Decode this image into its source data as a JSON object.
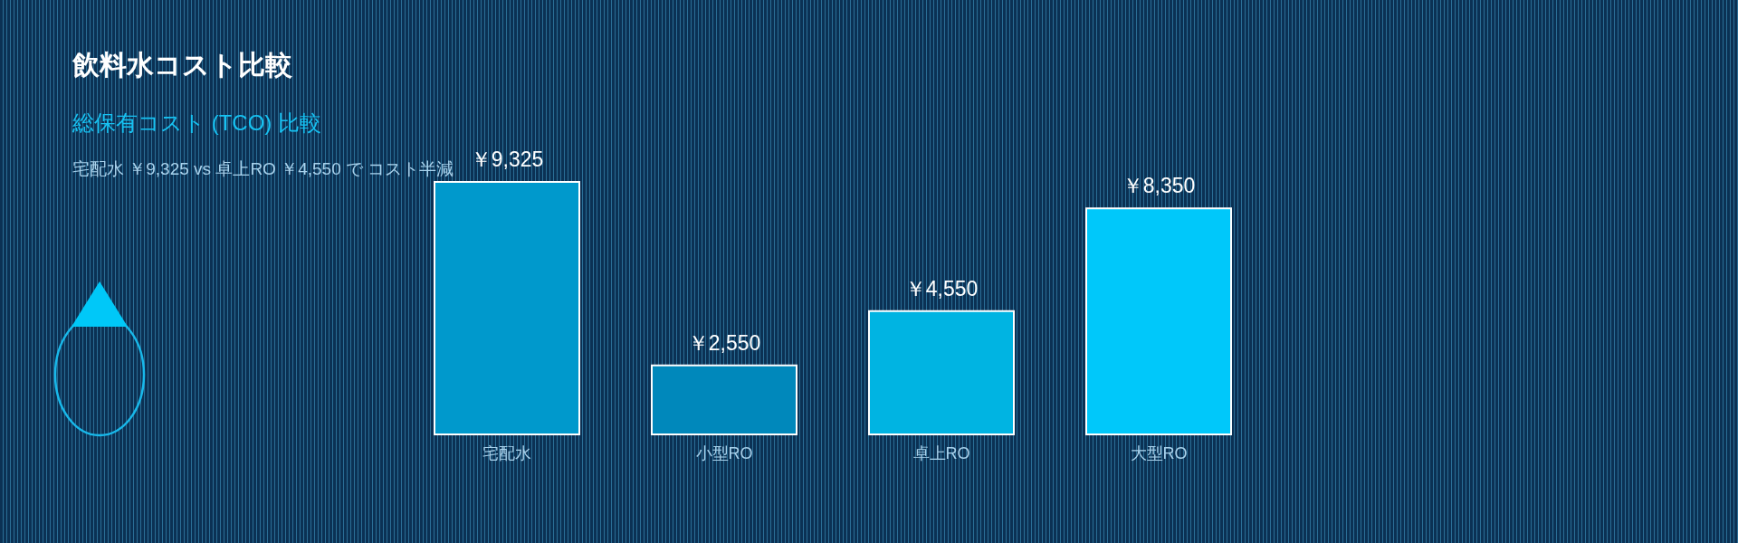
{
  "chart_data": {
    "type": "bar",
    "title": "飲料水コスト比較",
    "subtitle": "総保有コスト (TCO) 比較",
    "annotations": [
      "宅配水 ￥9,325 vs 卓上RO ￥4,550 で コスト半減"
    ],
    "categories": [
      "宅配水",
      "小型RO",
      "卓上RO",
      "大型RO"
    ],
    "values": [
      9325,
      2550,
      4550,
      8350
    ],
    "colors": [
      "#0099cc",
      "#0088bb",
      "#00b4e2",
      "#00c8fa"
    ],
    "value_labels": [
      "￥9,325",
      "￥2,550",
      "￥4,550",
      "￥8,350"
    ]
  }
}
